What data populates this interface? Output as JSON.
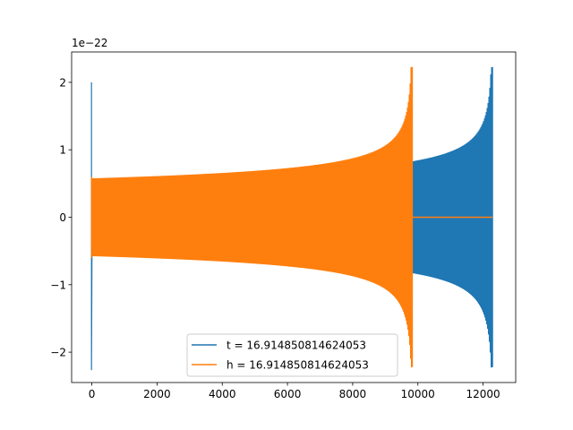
{
  "chart_data": {
    "type": "line",
    "title": "",
    "xlabel": "",
    "ylabel": "",
    "y_offset_label": "1e−22",
    "xlim": [
      -620,
      13000
    ],
    "ylim": [
      -2.45,
      2.45
    ],
    "xticks": [
      0,
      2000,
      4000,
      6000,
      8000,
      10000,
      12000
    ],
    "xtick_labels": [
      "0",
      "2000",
      "4000",
      "6000",
      "8000",
      "10000",
      "12000"
    ],
    "yticks": [
      -2,
      -1,
      0,
      1,
      2
    ],
    "ytick_labels": [
      "−2",
      "−1",
      "0",
      "1",
      "2"
    ],
    "grid": false,
    "legend_position": "lower-center",
    "series": [
      {
        "name": "t = 16.914850814624053",
        "color": "#1f77b4",
        "shape": "chirp",
        "x_start": 0,
        "x_end": 12290,
        "initial_spike": 2.0,
        "start_amplitude": 0.55,
        "end_amplitude": 2.22
      },
      {
        "name": "h = 16.914850814624053",
        "color": "#ff7f0e",
        "shape": "chirp",
        "x_start": 0,
        "x_end": 9830,
        "initial_spike": 0.6,
        "start_amplitude": 0.57,
        "end_amplitude": 2.22,
        "flat_until": 12290,
        "flat_value": 0
      }
    ]
  }
}
